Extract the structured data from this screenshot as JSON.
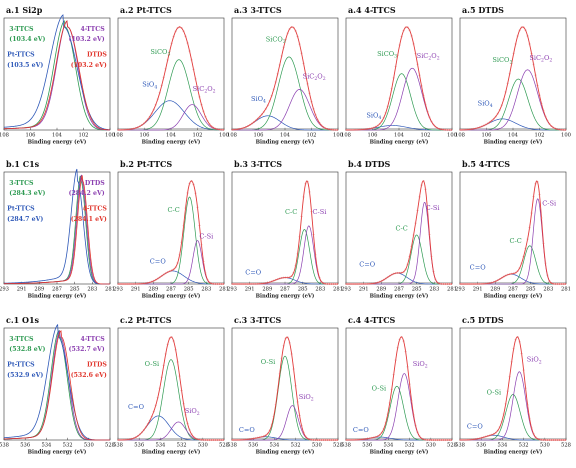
{
  "colors": {
    "green": "#2e9a52",
    "purple": "#8b3fb0",
    "blue": "#2f59b8",
    "red": "#e0352b",
    "fit_red": "#e23a3a",
    "raw_dots": "#e07b7b",
    "baseline": "#8a8a8a"
  },
  "chart_data": [
    {
      "id": "a1",
      "type": "line",
      "title": "a.1 Si2p",
      "xlabel": "Binding energy (eV)",
      "xlim": [
        108,
        100
      ],
      "xticks": [
        108,
        106,
        104,
        102,
        100
      ],
      "series": [
        {
          "name": "3-TTCS",
          "center": 103.4,
          "fwhm": 1.9,
          "color": "green"
        },
        {
          "name": "4-TTCS",
          "center": 103.2,
          "fwhm": 1.9,
          "color": "purple"
        },
        {
          "name": "Pt-TTCS",
          "center": 103.5,
          "fwhm": 2.4,
          "color": "blue"
        },
        {
          "name": "DTDS",
          "center": 103.2,
          "fwhm": 2.0,
          "color": "red"
        }
      ],
      "labels": [
        {
          "text": "3-TTCS",
          "color": "green",
          "pos": "left-top"
        },
        {
          "text": "(103.4 eV)",
          "color": "green",
          "pos": "left-top-2"
        },
        {
          "text": "4-TTCS",
          "color": "purple",
          "pos": "right-top"
        },
        {
          "text": "(103.2 eV)",
          "color": "purple",
          "pos": "right-top-2"
        },
        {
          "text": "Pt-TTCS",
          "color": "blue",
          "pos": "left-mid"
        },
        {
          "text": "(103.5 eV)",
          "color": "blue",
          "pos": "left-mid-2"
        },
        {
          "text": "DTDS",
          "color": "red",
          "pos": "right-mid"
        },
        {
          "text": "(103.2 eV)",
          "color": "red",
          "pos": "right-mid-2"
        }
      ]
    },
    {
      "id": "a2",
      "type": "line",
      "title": "a.2 Pt-TTCS",
      "xlabel": "Binding energy (eV)",
      "xlim": [
        108,
        100
      ],
      "xticks": [
        108,
        106,
        104,
        102,
        100
      ],
      "components": [
        {
          "name": "SiO4",
          "center": 104.1,
          "amp": 0.3,
          "fwhm": 2.6,
          "color": "blue"
        },
        {
          "name": "SiCO3",
          "center": 103.4,
          "amp": 0.72,
          "fwhm": 1.9,
          "color": "green"
        },
        {
          "name": "SiC2O2",
          "center": 102.4,
          "amp": 0.26,
          "fwhm": 1.6,
          "color": "purple"
        }
      ],
      "labels": [
        {
          "text": "SiO4",
          "color": "blue",
          "x": 105.6,
          "y": 0.42
        },
        {
          "text": "SiCO3",
          "color": "green",
          "x": 104.8,
          "y": 0.74
        },
        {
          "text": "SiC2O2",
          "color": "purple",
          "x": 101.5,
          "y": 0.38
        }
      ]
    },
    {
      "id": "a3",
      "type": "line",
      "title": "a.3 3-TTCS",
      "xlabel": "Binding energy (eV)",
      "xlim": [
        108,
        100
      ],
      "xticks": [
        108,
        106,
        104,
        102,
        100
      ],
      "components": [
        {
          "name": "SiO4",
          "center": 105.3,
          "amp": 0.14,
          "fwhm": 2.2,
          "color": "blue"
        },
        {
          "name": "SiCO3",
          "center": 103.7,
          "amp": 0.72,
          "fwhm": 1.9,
          "color": "green"
        },
        {
          "name": "SiC2O2",
          "center": 102.9,
          "amp": 0.4,
          "fwhm": 1.8,
          "color": "purple"
        }
      ],
      "labels": [
        {
          "text": "SiO4",
          "color": "blue",
          "x": 106.0,
          "y": 0.28
        },
        {
          "text": "SiCO3",
          "color": "green",
          "x": 104.7,
          "y": 0.86
        },
        {
          "text": "SiC2O2",
          "color": "purple",
          "x": 101.8,
          "y": 0.5
        }
      ]
    },
    {
      "id": "a4",
      "type": "line",
      "title": "a.4 4-TTCS",
      "xlabel": "Binding energy (eV)",
      "xlim": [
        108,
        100
      ],
      "xticks": [
        108,
        106,
        104,
        102,
        100
      ],
      "components": [
        {
          "name": "SiO4",
          "center": 104.5,
          "amp": 0.05,
          "fwhm": 2.5,
          "color": "blue"
        },
        {
          "name": "SiCO3",
          "center": 103.8,
          "amp": 0.62,
          "fwhm": 1.6,
          "color": "green"
        },
        {
          "name": "SiC2O2",
          "center": 103.0,
          "amp": 0.68,
          "fwhm": 1.7,
          "color": "purple"
        }
      ],
      "labels": [
        {
          "text": "SiO4",
          "color": "blue",
          "x": 105.9,
          "y": 0.12
        },
        {
          "text": "SiCO3",
          "color": "green",
          "x": 104.9,
          "y": 0.72
        },
        {
          "text": "SiC2O2",
          "color": "purple",
          "x": 101.8,
          "y": 0.7
        }
      ]
    },
    {
      "id": "a5",
      "type": "line",
      "title": "a.5 DTDS",
      "xlabel": "Binding energy (eV)",
      "xlim": [
        108,
        100
      ],
      "xticks": [
        108,
        106,
        104,
        102,
        100
      ],
      "components": [
        {
          "name": "SiO4",
          "center": 104.8,
          "amp": 0.12,
          "fwhm": 2.4,
          "color": "blue"
        },
        {
          "name": "SiCO3",
          "center": 103.6,
          "amp": 0.55,
          "fwhm": 1.7,
          "color": "green"
        },
        {
          "name": "SiC2O2",
          "center": 102.9,
          "amp": 0.65,
          "fwhm": 1.8,
          "color": "purple"
        }
      ],
      "labels": [
        {
          "text": "SiO4",
          "color": "blue",
          "x": 106.1,
          "y": 0.24
        },
        {
          "text": "SiCO3",
          "color": "green",
          "x": 104.8,
          "y": 0.66
        },
        {
          "text": "SiC2O2",
          "color": "purple",
          "x": 101.9,
          "y": 0.68
        }
      ]
    },
    {
      "id": "b1",
      "type": "line",
      "title": "b.1 C1s",
      "xlabel": "Binding energy (eV)",
      "xlim": [
        293,
        281
      ],
      "xticks": [
        293,
        291,
        289,
        287,
        285,
        283,
        281
      ],
      "series": [
        {
          "name": "3-TTCS",
          "center": 284.3,
          "fwhm": 1.3,
          "color": "green"
        },
        {
          "name": "DTDS",
          "center": 284.2,
          "fwhm": 1.3,
          "color": "purple"
        },
        {
          "name": "Pt-TTCS",
          "center": 284.7,
          "fwhm": 1.6,
          "color": "blue"
        },
        {
          "name": "4-TTCS",
          "center": 284.1,
          "fwhm": 1.3,
          "color": "red"
        }
      ],
      "labels": [
        {
          "text": "3-TTCS",
          "color": "green",
          "pos": "left-top"
        },
        {
          "text": "(284.3 eV)",
          "color": "green",
          "pos": "left-top-2"
        },
        {
          "text": "DTDS",
          "color": "purple",
          "pos": "right-top"
        },
        {
          "text": "(284.2 eV)",
          "color": "purple",
          "pos": "right-top-2"
        },
        {
          "text": "Pt-TTCS",
          "color": "blue",
          "pos": "left-mid"
        },
        {
          "text": "(284.7 eV)",
          "color": "blue",
          "pos": "left-mid-2"
        },
        {
          "text": "4-TTCS",
          "color": "red",
          "pos": "right-mid"
        },
        {
          "text": "(284.1 eV)",
          "color": "red",
          "pos": "right-mid-2"
        }
      ]
    },
    {
      "id": "b2",
      "type": "line",
      "title": "b.2 Pt-TTCS",
      "xlabel": "Binding energy (eV)",
      "xlim": [
        293,
        281
      ],
      "xticks": [
        293,
        291,
        289,
        287,
        285,
        283,
        281
      ],
      "components": [
        {
          "name": "C=O",
          "center": 286.8,
          "amp": 0.12,
          "fwhm": 3.0,
          "color": "blue"
        },
        {
          "name": "C-C",
          "center": 284.9,
          "amp": 0.8,
          "fwhm": 1.5,
          "color": "green"
        },
        {
          "name": "C-Si",
          "center": 284.0,
          "amp": 0.4,
          "fwhm": 1.2,
          "color": "purple"
        }
      ],
      "labels": [
        {
          "text": "C-C",
          "color": "green",
          "x": 286.7,
          "y": 0.7
        },
        {
          "text": "C-Si",
          "color": "purple",
          "x": 283.0,
          "y": 0.44
        },
        {
          "text": "C=O",
          "color": "blue",
          "x": 288.5,
          "y": 0.2
        }
      ]
    },
    {
      "id": "b3",
      "type": "line",
      "title": "b.3 3-TTCS",
      "xlabel": "Binding energy (eV)",
      "xlim": [
        293,
        281
      ],
      "xticks": [
        293,
        291,
        289,
        287,
        285,
        283,
        281
      ],
      "components": [
        {
          "name": "C=O",
          "center": 287.0,
          "amp": 0.07,
          "fwhm": 2.6,
          "color": "blue"
        },
        {
          "name": "C-C",
          "center": 284.8,
          "amp": 0.6,
          "fwhm": 1.4,
          "color": "green"
        },
        {
          "name": "C-Si",
          "center": 284.3,
          "amp": 0.64,
          "fwhm": 1.3,
          "color": "purple"
        }
      ],
      "labels": [
        {
          "text": "C-C",
          "color": "green",
          "x": 286.3,
          "y": 0.68
        },
        {
          "text": "C-Si",
          "color": "purple",
          "x": 283.1,
          "y": 0.68
        },
        {
          "text": "C=O",
          "color": "blue",
          "x": 290.6,
          "y": 0.09
        }
      ]
    },
    {
      "id": "b4",
      "type": "line",
      "title": "b.4 DTDS",
      "xlabel": "Binding energy (eV)",
      "xlim": [
        293,
        281
      ],
      "xticks": [
        293,
        291,
        289,
        287,
        285,
        283,
        281
      ],
      "components": [
        {
          "name": "C=O",
          "center": 287.2,
          "amp": 0.1,
          "fwhm": 2.6,
          "color": "blue"
        },
        {
          "name": "C-C",
          "center": 285.0,
          "amp": 0.45,
          "fwhm": 1.5,
          "color": "green"
        },
        {
          "name": "C-Si",
          "center": 284.1,
          "amp": 0.75,
          "fwhm": 1.2,
          "color": "purple"
        }
      ],
      "labels": [
        {
          "text": "C-C",
          "color": "green",
          "x": 286.7,
          "y": 0.52
        },
        {
          "text": "C-Si",
          "color": "purple",
          "x": 283.2,
          "y": 0.72
        },
        {
          "text": "C=O",
          "color": "blue",
          "x": 290.6,
          "y": 0.17
        }
      ]
    },
    {
      "id": "b5",
      "type": "line",
      "title": "b.5 4-TTCS",
      "xlabel": "Binding energy (eV)",
      "xlim": [
        293,
        281
      ],
      "xticks": [
        293,
        291,
        289,
        287,
        285,
        283,
        281
      ],
      "components": [
        {
          "name": "C=O",
          "center": 287.2,
          "amp": 0.09,
          "fwhm": 2.6,
          "color": "blue"
        },
        {
          "name": "C-C",
          "center": 285.1,
          "amp": 0.35,
          "fwhm": 1.6,
          "color": "green"
        },
        {
          "name": "C-Si",
          "center": 284.2,
          "amp": 0.78,
          "fwhm": 1.2,
          "color": "purple"
        }
      ],
      "labels": [
        {
          "text": "C-C",
          "color": "green",
          "x": 286.7,
          "y": 0.4
        },
        {
          "text": "C-Si",
          "color": "purple",
          "x": 282.9,
          "y": 0.76
        },
        {
          "text": "C=O",
          "color": "blue",
          "x": 291.0,
          "y": 0.14
        }
      ]
    },
    {
      "id": "c1",
      "type": "line",
      "title": "c.1 O1s",
      "xlabel": "Binding energy (eV)",
      "xlim": [
        538,
        528
      ],
      "xticks": [
        538,
        536,
        534,
        532,
        530,
        528
      ],
      "series": [
        {
          "name": "3-TTCS",
          "center": 532.8,
          "fwhm": 1.8,
          "color": "green"
        },
        {
          "name": "4-TTCS",
          "center": 532.7,
          "fwhm": 1.8,
          "color": "purple"
        },
        {
          "name": "Pt-TTCS",
          "center": 532.9,
          "fwhm": 2.3,
          "color": "blue"
        },
        {
          "name": "DTDS",
          "center": 532.6,
          "fwhm": 1.9,
          "color": "red"
        }
      ],
      "labels": [
        {
          "text": "3-TTCS",
          "color": "green",
          "pos": "left-top"
        },
        {
          "text": "(532.8 eV)",
          "color": "green",
          "pos": "left-top-2"
        },
        {
          "text": "4-TTCS",
          "color": "purple",
          "pos": "right-top"
        },
        {
          "text": "(532.7 eV)",
          "color": "purple",
          "pos": "right-top-2"
        },
        {
          "text": "Pt-TTCS",
          "color": "blue",
          "pos": "left-mid"
        },
        {
          "text": "(532.9 eV)",
          "color": "blue",
          "pos": "left-mid-2"
        },
        {
          "text": "DTDS",
          "color": "red",
          "pos": "right-mid"
        },
        {
          "text": "(532.6 eV)",
          "color": "red",
          "pos": "right-mid-2"
        }
      ]
    },
    {
      "id": "c2",
      "type": "line",
      "title": "c.2 Pt-TTCS",
      "xlabel": "Binding energy (eV)",
      "xlim": [
        538,
        528
      ],
      "xticks": [
        538,
        536,
        534,
        532,
        530,
        528
      ],
      "components": [
        {
          "name": "C=O",
          "center": 534.2,
          "amp": 0.24,
          "fwhm": 2.4,
          "color": "blue"
        },
        {
          "name": "O-Si",
          "center": 533.0,
          "amp": 0.8,
          "fwhm": 1.7,
          "color": "green"
        },
        {
          "name": "SiO2",
          "center": 532.3,
          "amp": 0.18,
          "fwhm": 1.6,
          "color": "purple"
        }
      ],
      "labels": [
        {
          "text": "O-Si",
          "color": "green",
          "x": 534.8,
          "y": 0.72
        },
        {
          "text": "C=O",
          "color": "blue",
          "x": 536.3,
          "y": 0.3
        },
        {
          "text": "SiO2",
          "color": "purple",
          "x": 531.0,
          "y": 0.26
        }
      ]
    },
    {
      "id": "c3",
      "type": "line",
      "title": "c.3 3-TTCS",
      "xlabel": "Binding energy (eV)",
      "xlim": [
        538,
        528
      ],
      "xticks": [
        538,
        536,
        534,
        532,
        530,
        528
      ],
      "components": [
        {
          "name": "C=O",
          "center": 534.8,
          "amp": 0.03,
          "fwhm": 2.2,
          "color": "blue"
        },
        {
          "name": "O-Si",
          "center": 533.0,
          "amp": 0.78,
          "fwhm": 1.5,
          "color": "green"
        },
        {
          "name": "SiO2",
          "center": 532.3,
          "amp": 0.32,
          "fwhm": 1.3,
          "color": "purple"
        }
      ],
      "labels": [
        {
          "text": "O-Si",
          "color": "green",
          "x": 534.6,
          "y": 0.74
        },
        {
          "text": "SiO2",
          "color": "purple",
          "x": 531.0,
          "y": 0.4
        },
        {
          "text": "C=O",
          "color": "blue",
          "x": 536.6,
          "y": 0.08
        }
      ]
    },
    {
      "id": "c4",
      "type": "line",
      "title": "c.4 4-TTCS",
      "xlabel": "Binding energy (eV)",
      "xlim": [
        538,
        528
      ],
      "xticks": [
        538,
        536,
        534,
        532,
        530,
        528
      ],
      "components": [
        {
          "name": "C=O",
          "center": 534.8,
          "amp": 0.03,
          "fwhm": 2.2,
          "color": "blue"
        },
        {
          "name": "O-Si",
          "center": 533.2,
          "amp": 0.55,
          "fwhm": 1.5,
          "color": "green"
        },
        {
          "name": "SiO2",
          "center": 532.5,
          "amp": 0.68,
          "fwhm": 1.4,
          "color": "purple"
        }
      ],
      "labels": [
        {
          "text": "O-Si",
          "color": "green",
          "x": 534.9,
          "y": 0.48
        },
        {
          "text": "SiO2",
          "color": "purple",
          "x": 531.0,
          "y": 0.72
        },
        {
          "text": "C=O",
          "color": "blue",
          "x": 536.6,
          "y": 0.08
        }
      ]
    },
    {
      "id": "c5",
      "type": "line",
      "title": "c.5 DTDS",
      "xlabel": "Binding energy (eV)",
      "xlim": [
        538,
        528
      ],
      "xticks": [
        538,
        536,
        534,
        532,
        530,
        528
      ],
      "components": [
        {
          "name": "C=O",
          "center": 534.8,
          "amp": 0.05,
          "fwhm": 2.2,
          "color": "blue"
        },
        {
          "name": "O-Si",
          "center": 533.0,
          "amp": 0.48,
          "fwhm": 1.6,
          "color": "green"
        },
        {
          "name": "SiO2",
          "center": 532.4,
          "amp": 0.72,
          "fwhm": 1.4,
          "color": "purple"
        }
      ],
      "labels": [
        {
          "text": "O-Si",
          "color": "green",
          "x": 534.8,
          "y": 0.44
        },
        {
          "text": "SiO2",
          "color": "purple",
          "x": 531.0,
          "y": 0.76
        },
        {
          "text": "C=O",
          "color": "blue",
          "x": 536.6,
          "y": 0.11
        }
      ]
    }
  ]
}
